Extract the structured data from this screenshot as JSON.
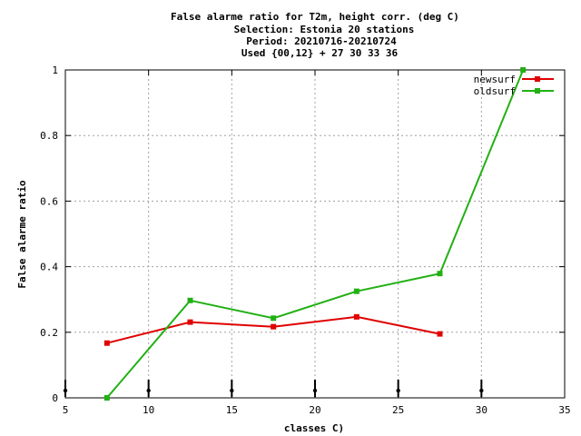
{
  "chart_data": {
    "type": "line",
    "title_lines": [
      "False alarme ratio  for T2m, height corr. (deg C)",
      "Selection: Estonia     20 stations",
      "Period: 20210716-20210724",
      "Used {00,12} + 27 30 33 36"
    ],
    "xlabel": "classes C)",
    "ylabel": "False alarme ratio",
    "xlim": [
      5,
      35
    ],
    "ylim": [
      0,
      1
    ],
    "xticks": [
      5,
      10,
      15,
      20,
      25,
      30,
      35
    ],
    "yticks": [
      0,
      0.2,
      0.4,
      0.6,
      0.8,
      1
    ],
    "xtick_labels": [
      "5",
      "10",
      "15",
      "20",
      "25",
      "30",
      "35"
    ],
    "ytick_labels": [
      "0",
      "0.2",
      "0.4",
      "0.6",
      "0.8",
      "1"
    ],
    "grid": true,
    "legend_position": "top-right",
    "series": [
      {
        "name": "newsurf",
        "color": "#e00000",
        "x": [
          7.5,
          12.5,
          17.5,
          22.5,
          27.5
        ],
        "y": [
          0.167,
          0.231,
          0.217,
          0.247,
          0.195
        ]
      },
      {
        "name": "oldsurf",
        "color": "#22b014",
        "x": [
          7.5,
          12.5,
          17.5,
          22.5,
          27.5,
          32.5
        ],
        "y": [
          0.0,
          0.297,
          0.243,
          0.325,
          0.379,
          1.0
        ]
      }
    ],
    "marker_x": [
      5,
      10,
      15,
      20,
      25,
      30
    ]
  }
}
